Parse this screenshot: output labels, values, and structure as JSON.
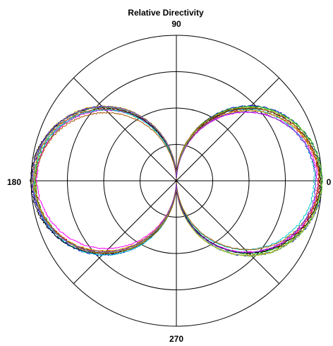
{
  "chart_data": {
    "type": "polar-line",
    "title": "Relative Directivity",
    "angle_labels": {
      "deg0": "0",
      "deg90": "90",
      "deg180": "180",
      "deg270": "270"
    },
    "radial_range": [
      0,
      1
    ],
    "radial_rings": [
      0.25,
      0.5,
      0.75,
      1.0
    ],
    "spokes_deg": [
      0,
      45,
      90,
      135,
      180,
      225,
      270,
      315
    ],
    "grid": true,
    "pattern": "figure-eight (|cos θ|)",
    "series": [
      {
        "color": "#0000cc",
        "amp0": 1.0,
        "amp180": 0.99,
        "null_depth": 0.02,
        "skew": 0.0,
        "bulge": 0.1
      },
      {
        "color": "#cc0000",
        "amp0": 0.98,
        "amp180": 0.98,
        "null_depth": 0.01,
        "skew": 0.01,
        "bulge": 0.0
      },
      {
        "color": "#00aa00",
        "amp0": 1.0,
        "amp180": 0.97,
        "null_depth": 0.03,
        "skew": -0.01,
        "bulge": 0.04
      },
      {
        "color": "#ff00ff",
        "amp0": 0.97,
        "amp180": 0.96,
        "null_depth": 0.02,
        "skew": 0.02,
        "bulge": -0.03
      },
      {
        "color": "#00cccc",
        "amp0": 0.95,
        "amp180": 0.98,
        "null_depth": 0.04,
        "skew": -0.02,
        "bulge": 0.06
      },
      {
        "color": "#ccaa00",
        "amp0": 0.99,
        "amp180": 0.99,
        "null_depth": 0.02,
        "skew": 0.03,
        "bulge": 0.02
      },
      {
        "color": "#000000",
        "amp0": 0.99,
        "amp180": 1.0,
        "null_depth": 0.01,
        "skew": 0.0,
        "bulge": 0.01
      },
      {
        "color": "#88cc44",
        "amp0": 1.0,
        "amp180": 0.98,
        "null_depth": 0.05,
        "skew": 0.01,
        "bulge": 0.07
      },
      {
        "color": "#aa5500",
        "amp0": 0.98,
        "amp180": 0.97,
        "null_depth": 0.02,
        "skew": -0.03,
        "bulge": -0.02
      },
      {
        "color": "#6633cc",
        "amp0": 0.96,
        "amp180": 0.99,
        "null_depth": 0.03,
        "skew": 0.02,
        "bulge": 0.03
      }
    ]
  }
}
